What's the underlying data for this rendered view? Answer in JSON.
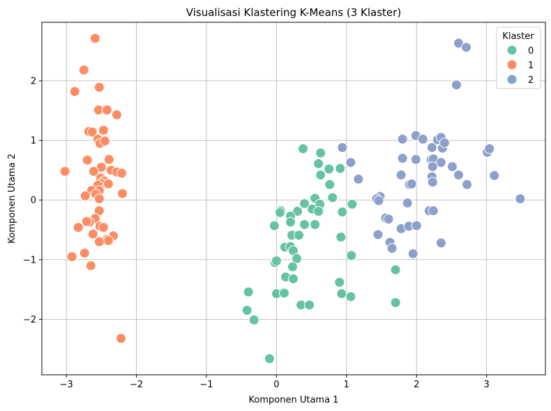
{
  "chart_data": {
    "type": "scatter",
    "title": "Visualisasi Klastering K-Means (3 Klaster)",
    "xlabel": "Komponen Utama 1",
    "ylabel": "Komponen Utama 2",
    "xlim": [
      -3.35,
      3.84
    ],
    "ylim": [
      -2.93,
      2.98
    ],
    "xticks": [
      -3,
      -2,
      -1,
      0,
      1,
      2,
      3
    ],
    "yticks": [
      -2,
      -1,
      0,
      1,
      2
    ],
    "grid": true,
    "legend": {
      "title": "Klaster",
      "position": "top-right"
    },
    "series": [
      {
        "name": "0",
        "color": "#66c2a5",
        "points": [
          [
            0.38,
            0.86
          ],
          [
            0.63,
            0.79
          ],
          [
            0.6,
            0.61
          ],
          [
            0.75,
            0.52
          ],
          [
            0.91,
            0.53
          ],
          [
            0.63,
            0.42
          ],
          [
            0.76,
            0.26
          ],
          [
            0.55,
            0.03
          ],
          [
            0.8,
            0.04
          ],
          [
            0.4,
            -0.06
          ],
          [
            0.62,
            -0.07
          ],
          [
            0.51,
            -0.15
          ],
          [
            0.6,
            -0.19
          ],
          [
            0.94,
            -0.2
          ],
          [
            1.08,
            -0.07
          ],
          [
            0.3,
            -0.19
          ],
          [
            0.06,
            -0.18
          ],
          [
            0.05,
            -0.21
          ],
          [
            0.2,
            -0.27
          ],
          [
            0.2,
            -0.37
          ],
          [
            0.4,
            -0.41
          ],
          [
            0.55,
            -0.41
          ],
          [
            -0.03,
            -0.43
          ],
          [
            0.22,
            -0.59
          ],
          [
            0.32,
            -0.59
          ],
          [
            0.92,
            -0.62
          ],
          [
            0.12,
            -0.79
          ],
          [
            0.2,
            -0.78
          ],
          [
            0.24,
            -0.85
          ],
          [
            0.29,
            -0.98
          ],
          [
            -0.02,
            -1.05
          ],
          [
            0.23,
            -1.12
          ],
          [
            0.0,
            -1.02
          ],
          [
            1.07,
            -0.93
          ],
          [
            1.7,
            -1.17
          ],
          [
            0.13,
            -1.29
          ],
          [
            0.24,
            -1.32
          ],
          [
            0.9,
            -1.38
          ],
          [
            -0.4,
            -1.54
          ],
          [
            0.0,
            -1.57
          ],
          [
            0.11,
            -1.56
          ],
          [
            0.93,
            -1.57
          ],
          [
            1.06,
            -1.62
          ],
          [
            1.7,
            -1.72
          ],
          [
            0.35,
            -1.76
          ],
          [
            0.47,
            -1.76
          ],
          [
            -0.42,
            -1.85
          ],
          [
            -0.32,
            -2.01
          ],
          [
            -0.1,
            -2.66
          ]
        ]
      },
      {
        "name": "1",
        "color": "#fc8d62",
        "points": [
          [
            -2.59,
            2.71
          ],
          [
            -2.75,
            2.18
          ],
          [
            -2.53,
            1.89
          ],
          [
            -2.88,
            1.82
          ],
          [
            -2.54,
            1.51
          ],
          [
            -2.42,
            1.51
          ],
          [
            -2.28,
            1.43
          ],
          [
            -2.47,
            1.17
          ],
          [
            -2.68,
            1.15
          ],
          [
            -2.63,
            1.14
          ],
          [
            -2.55,
            1.02
          ],
          [
            -2.52,
            0.95
          ],
          [
            -2.45,
            0.99
          ],
          [
            -2.7,
            0.67
          ],
          [
            -2.39,
            0.68
          ],
          [
            -2.5,
            0.55
          ],
          [
            -2.36,
            0.5
          ],
          [
            -2.28,
            0.47
          ],
          [
            -2.21,
            0.45
          ],
          [
            -2.61,
            0.48
          ],
          [
            -2.51,
            0.37
          ],
          [
            -2.46,
            0.32
          ],
          [
            -2.5,
            0.28
          ],
          [
            -2.4,
            0.27
          ],
          [
            -2.55,
            0.25
          ],
          [
            -2.53,
            0.16
          ],
          [
            -2.64,
            0.16
          ],
          [
            -2.58,
            0.1
          ],
          [
            -2.2,
            0.11
          ],
          [
            -2.73,
            0.07
          ],
          [
            -3.02,
            0.48
          ],
          [
            -2.53,
            0.02
          ],
          [
            -2.53,
            -0.18
          ],
          [
            -2.59,
            -0.31
          ],
          [
            -2.67,
            -0.37
          ],
          [
            -2.71,
            -0.36
          ],
          [
            -2.52,
            -0.44
          ],
          [
            -2.47,
            -0.46
          ],
          [
            -2.83,
            -0.46
          ],
          [
            -2.62,
            -0.57
          ],
          [
            -2.33,
            -0.6
          ],
          [
            -2.42,
            -0.66
          ],
          [
            -2.4,
            -0.68
          ],
          [
            -2.53,
            -0.7
          ],
          [
            -2.74,
            -0.89
          ],
          [
            -2.92,
            -0.95
          ],
          [
            -2.65,
            -1.1
          ],
          [
            -2.22,
            -2.32
          ]
        ]
      },
      {
        "name": "2",
        "color": "#8da0cb",
        "points": [
          [
            2.6,
            2.63
          ],
          [
            2.71,
            2.56
          ],
          [
            2.57,
            1.93
          ],
          [
            1.99,
            1.08
          ],
          [
            1.8,
            1.02
          ],
          [
            2.09,
            1.02
          ],
          [
            2.3,
            1.01
          ],
          [
            2.35,
            1.05
          ],
          [
            2.22,
            0.88
          ],
          [
            2.37,
            0.87
          ],
          [
            2.4,
            0.96
          ],
          [
            0.94,
            0.88
          ],
          [
            3.01,
            0.8
          ],
          [
            3.04,
            0.86
          ],
          [
            2.21,
            0.68
          ],
          [
            2.24,
            0.69
          ],
          [
            1.8,
            0.7
          ],
          [
            1.99,
            0.68
          ],
          [
            2.35,
            0.63
          ],
          [
            2.23,
            0.56
          ],
          [
            2.51,
            0.56
          ],
          [
            1.06,
            0.63
          ],
          [
            1.78,
            0.42
          ],
          [
            2.6,
            0.42
          ],
          [
            2.22,
            0.39
          ],
          [
            3.11,
            0.41
          ],
          [
            1.17,
            0.35
          ],
          [
            2.23,
            0.3
          ],
          [
            1.9,
            0.26
          ],
          [
            1.93,
            0.27
          ],
          [
            2.72,
            0.26
          ],
          [
            1.48,
            0.06
          ],
          [
            1.43,
            0.02
          ],
          [
            1.46,
            -0.01
          ],
          [
            3.48,
            0.02
          ],
          [
            1.87,
            -0.05
          ],
          [
            2.18,
            -0.18
          ],
          [
            2.24,
            -0.18
          ],
          [
            1.56,
            -0.3
          ],
          [
            1.6,
            -0.32
          ],
          [
            1.78,
            -0.48
          ],
          [
            1.89,
            -0.44
          ],
          [
            2.0,
            -0.43
          ],
          [
            1.45,
            -0.58
          ],
          [
            1.62,
            -0.71
          ],
          [
            2.35,
            -0.72
          ],
          [
            1.65,
            -0.81
          ],
          [
            1.95,
            -0.9
          ]
        ]
      }
    ]
  }
}
